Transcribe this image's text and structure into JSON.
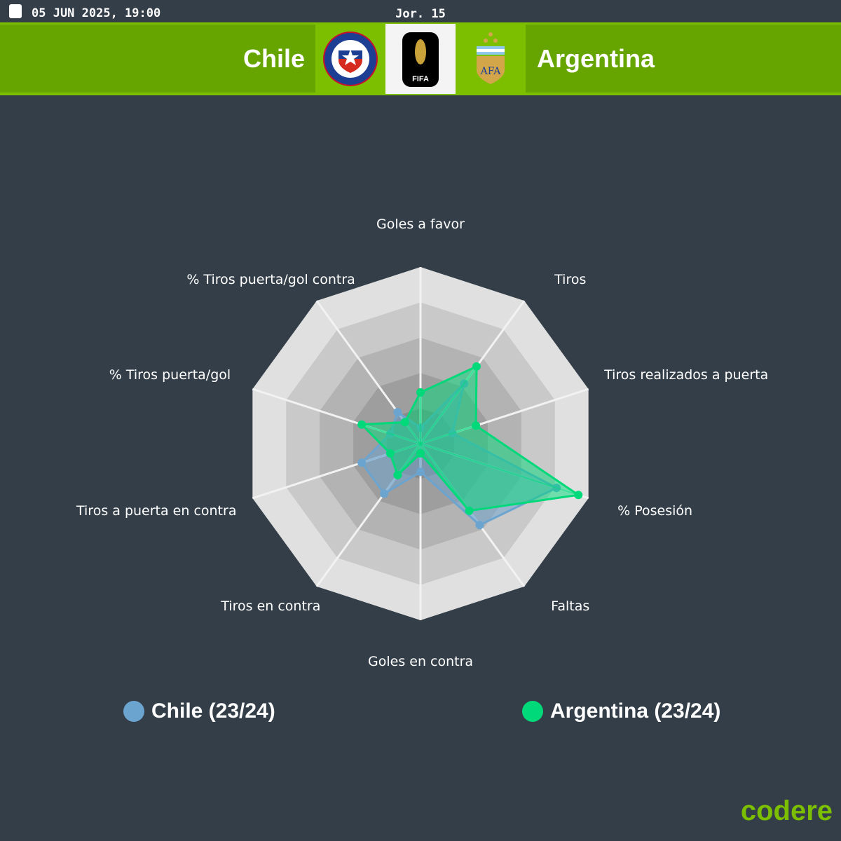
{
  "header": {
    "date": "05 JUN 2025, 19:00",
    "round": "Jor. 15",
    "home": "Chile",
    "away": "Argentina",
    "competition_logo_text": "FIFA"
  },
  "colors": {
    "chile": "#6ba4cf",
    "argentina": "#00d97a",
    "brand": "#7bbf00"
  },
  "chart_data": {
    "type": "radar",
    "axes": [
      "Goles a favor",
      "Tiros",
      "Tiros realizados a puerta",
      "% Posesión",
      "Faltas",
      "Goles en contra",
      "Tiros en contra",
      "Tiros a puerta en contra",
      "% Tiros puerta/gol",
      "% Tiros puerta/gol contra"
    ],
    "range": [
      0,
      1
    ],
    "rings": 5,
    "series": [
      {
        "name": "Chile (23/24)",
        "values": [
          0.09,
          0.42,
          0.19,
          0.81,
          0.57,
          0.16,
          0.35,
          0.35,
          0.18,
          0.22
        ]
      },
      {
        "name": "Argentina (23/24)",
        "values": [
          0.29,
          0.54,
          0.33,
          0.94,
          0.47,
          0.055,
          0.22,
          0.18,
          0.35,
          0.15
        ]
      }
    ],
    "legend": "bottom"
  },
  "footer": {
    "brand": "codere"
  }
}
